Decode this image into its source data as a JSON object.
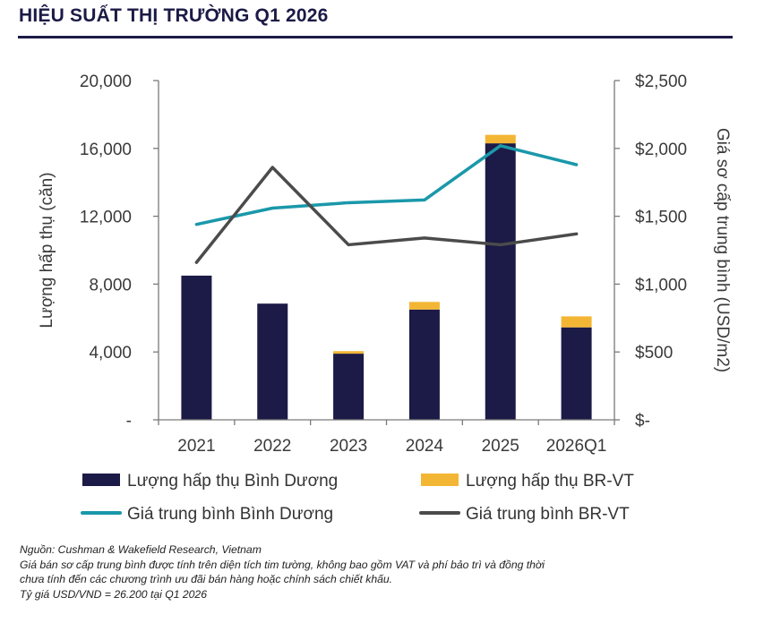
{
  "header": {
    "title": "HIỆU SUẤT THỊ TRƯỜNG Q1 2026"
  },
  "chart_data": {
    "type": "bar",
    "categories": [
      "2021",
      "2022",
      "2023",
      "2024",
      "2025",
      "2026Q1"
    ],
    "stacked": true,
    "ylabel": "Lượng hấp thụ (căn)",
    "y2label": "Giá sơ cấp trung bình (USD/m2)",
    "ylim": [
      0,
      20000
    ],
    "y2lim": [
      0,
      2500
    ],
    "yticks": [
      "-",
      "4,000",
      "8,000",
      "12,000",
      "16,000",
      "20,000"
    ],
    "y2ticks": [
      "$-",
      "$500",
      "$1,000",
      "$1,500",
      "$2,000",
      "$2,500"
    ],
    "bar_series": [
      {
        "name": "Lượng hấp thụ Bình Dương",
        "color": "#1c1a46",
        "values": [
          8500,
          6850,
          3900,
          6500,
          16300,
          5450
        ]
      },
      {
        "name": "Lượng hấp thụ BR-VT",
        "color": "#f3b634",
        "values": [
          0,
          0,
          150,
          450,
          500,
          650
        ]
      }
    ],
    "line_series": [
      {
        "name": "Giá trung bình Bình Dương",
        "color": "#1a98aa",
        "axis": "right",
        "values": [
          1440,
          1560,
          1600,
          1620,
          2020,
          1880
        ]
      },
      {
        "name": "Giá trung bình BR-VT",
        "color": "#4b4b4b",
        "axis": "right",
        "values": [
          1160,
          1860,
          1290,
          1340,
          1290,
          1370
        ]
      }
    ],
    "grid": false,
    "legend": "bottom"
  },
  "notes": {
    "source": "Nguồn: Cushman & Wakefield Research, Vietnam",
    "line1": "Giá bán sơ cấp trung bình được tính trên diện tích tim tường, không bao gồm VAT và phí bảo trì và đồng thời",
    "line2": "chưa tính đến các chương trình ưu đãi bán hàng hoặc chính sách chiết khấu.",
    "line3": "Tỷ giá USD/VND = 26.200 tại Q1 2026"
  }
}
